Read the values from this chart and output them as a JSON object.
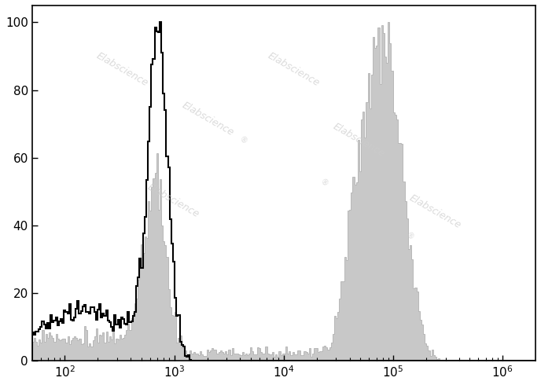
{
  "xlim_log": [
    1.7,
    6.3
  ],
  "ylim": [
    0,
    105
  ],
  "yticks": [
    0,
    20,
    40,
    60,
    80,
    100
  ],
  "xticks_log": [
    2,
    3,
    4,
    5,
    6
  ],
  "background_color": "#ffffff",
  "watermark_text": "Elabscience",
  "watermark_color": "#cccccc",
  "unstained_peak_log": 2.85,
  "stained_peak_log": 4.95,
  "gray_fill": "#c8c8c8",
  "gray_edge": "#a8a8a8",
  "black_line": "#000000",
  "figsize": [
    6.88,
    4.9
  ],
  "dpi": 100
}
